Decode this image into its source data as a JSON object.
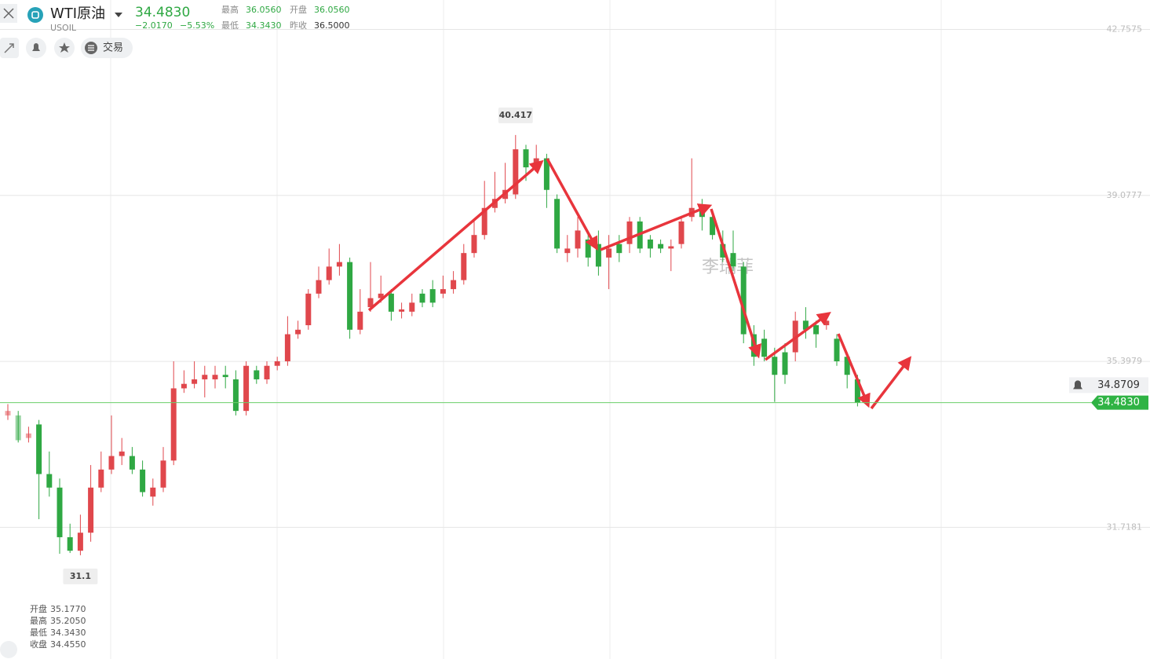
{
  "quote": {
    "name": "WTI原油",
    "symbol": "USOIL",
    "price": "34.4830",
    "change": "−2.0170",
    "change_pct": "−5.53%",
    "high_label": "最高",
    "high": "36.0560",
    "open_label": "开盘",
    "open": "36.0560",
    "low_label": "最低",
    "low": "34.3430",
    "prev_label": "昨收",
    "prev_close": "36.5000"
  },
  "toolbar": {
    "trade": "交易"
  },
  "watermark": "李瑞菲",
  "hover_info": [
    {
      "label": "开盘",
      "value": "35.1770"
    },
    {
      "label": "最高",
      "value": "35.2050"
    },
    {
      "label": "最低",
      "value": "34.3430"
    },
    {
      "label": "收盘",
      "value": "34.4550"
    }
  ],
  "chart_data": {
    "type": "candlestick",
    "ylim": [
      28.8,
      43.41
    ],
    "yticks": [
      42.7575,
      39.0777,
      35.3979,
      31.7181
    ],
    "grid": true,
    "up_color": "#e0474c",
    "down_color": "#2fa843",
    "last_price": {
      "value": 34.483,
      "label": "34.4830"
    },
    "alert_price": 34.8709,
    "open": [
      34.2,
      34.2,
      33.7,
      34.0,
      32.9,
      32.6,
      31.5,
      31.2,
      31.6,
      32.6,
      33.0,
      33.3,
      33.3,
      33.0,
      32.4,
      32.6,
      33.2,
      34.8,
      34.9,
      35.0,
      35.0,
      35.1,
      35.0,
      34.3,
      35.2,
      35.0,
      35.3,
      35.4,
      36.0,
      36.2,
      36.9,
      37.2,
      37.5,
      37.6,
      36.1,
      36.6,
      36.8,
      36.9,
      36.5,
      36.5,
      36.9,
      37.0,
      36.9,
      37.0,
      37.2,
      37.8,
      38.2,
      38.8,
      39.0,
      39.1,
      40.1,
      39.8,
      39.9,
      39.0,
      37.8,
      37.9,
      38.1,
      38.0,
      37.7,
      38.0,
      38.0,
      38.5,
      38.1,
      38.0,
      37.9,
      38.0,
      38.6,
      38.8,
      38.6,
      38.0,
      37.8,
      37.5,
      36.0,
      35.9,
      35.5,
      35.6,
      35.6,
      36.3,
      36.2,
      36.2,
      35.9,
      35.5,
      35.0
    ],
    "high": [
      34.45,
      34.3,
      33.95,
      34.1,
      33.4,
      32.8,
      31.8,
      32.0,
      33.1,
      33.4,
      34.2,
      33.7,
      33.5,
      33.2,
      32.8,
      33.5,
      35.4,
      35.2,
      35.4,
      35.3,
      35.3,
      35.3,
      35.2,
      35.4,
      35.3,
      35.4,
      35.5,
      36.4,
      36.3,
      37.0,
      37.5,
      37.9,
      38.0,
      37.7,
      37.0,
      37.6,
      37.3,
      37.0,
      36.7,
      36.9,
      37.0,
      37.2,
      37.3,
      37.4,
      38.0,
      38.5,
      39.4,
      39.6,
      39.8,
      40.417,
      40.2,
      40.2,
      40.0,
      39.1,
      38.2,
      38.6,
      38.2,
      38.3,
      38.2,
      38.2,
      38.6,
      38.6,
      38.2,
      38.1,
      38.1,
      38.6,
      39.9,
      39.0,
      38.7,
      38.3,
      38.3,
      37.6,
      36.2,
      36.1,
      35.7,
      35.8,
      36.5,
      36.6,
      36.3,
      36.4,
      36.0,
      35.6,
      35.1
    ],
    "low": [
      34.1,
      33.6,
      33.6,
      31.9,
      32.4,
      31.133,
      31.15,
      31.1,
      31.4,
      32.5,
      32.9,
      33.1,
      32.9,
      32.4,
      32.2,
      32.5,
      33.1,
      34.7,
      34.8,
      34.6,
      34.8,
      34.8,
      34.2,
      34.2,
      34.9,
      34.9,
      35.2,
      35.3,
      35.9,
      36.1,
      36.8,
      37.1,
      37.3,
      35.9,
      36.0,
      36.5,
      36.7,
      36.3,
      36.35,
      36.4,
      36.6,
      36.6,
      36.8,
      36.9,
      37.1,
      37.7,
      38.1,
      38.7,
      38.9,
      39.0,
      39.4,
      39.6,
      38.8,
      37.8,
      37.6,
      37.7,
      37.5,
      37.3,
      37.0,
      37.6,
      37.8,
      37.8,
      37.7,
      37.8,
      37.4,
      37.9,
      38.5,
      38.3,
      38.1,
      37.6,
      37.4,
      35.8,
      35.3,
      35.4,
      34.5,
      34.9,
      35.4,
      35.9,
      35.7,
      36.1,
      35.3,
      34.8,
      34.4
    ],
    "close": [
      34.3,
      33.65,
      33.8,
      32.9,
      32.6,
      31.5,
      31.2,
      31.6,
      32.6,
      33.0,
      33.3,
      33.4,
      33.0,
      32.5,
      32.6,
      33.2,
      34.8,
      34.9,
      35.0,
      35.1,
      35.1,
      35.05,
      34.3,
      35.3,
      35.0,
      35.3,
      35.4,
      36.0,
      36.1,
      36.9,
      37.2,
      37.5,
      37.6,
      36.1,
      36.5,
      36.8,
      36.9,
      36.5,
      36.55,
      36.7,
      36.7,
      36.7,
      37.0,
      37.2,
      37.8,
      38.2,
      38.8,
      39.0,
      39.2,
      40.1,
      39.7,
      39.9,
      39.2,
      37.9,
      37.9,
      38.3,
      37.7,
      37.5,
      37.9,
      37.8,
      38.5,
      37.9,
      37.9,
      37.9,
      37.95,
      38.5,
      38.8,
      38.6,
      38.2,
      37.7,
      37.5,
      36.0,
      35.5,
      35.5,
      35.1,
      35.1,
      36.3,
      36.1,
      36.0,
      36.3,
      35.4,
      35.1,
      34.483
    ]
  }
}
